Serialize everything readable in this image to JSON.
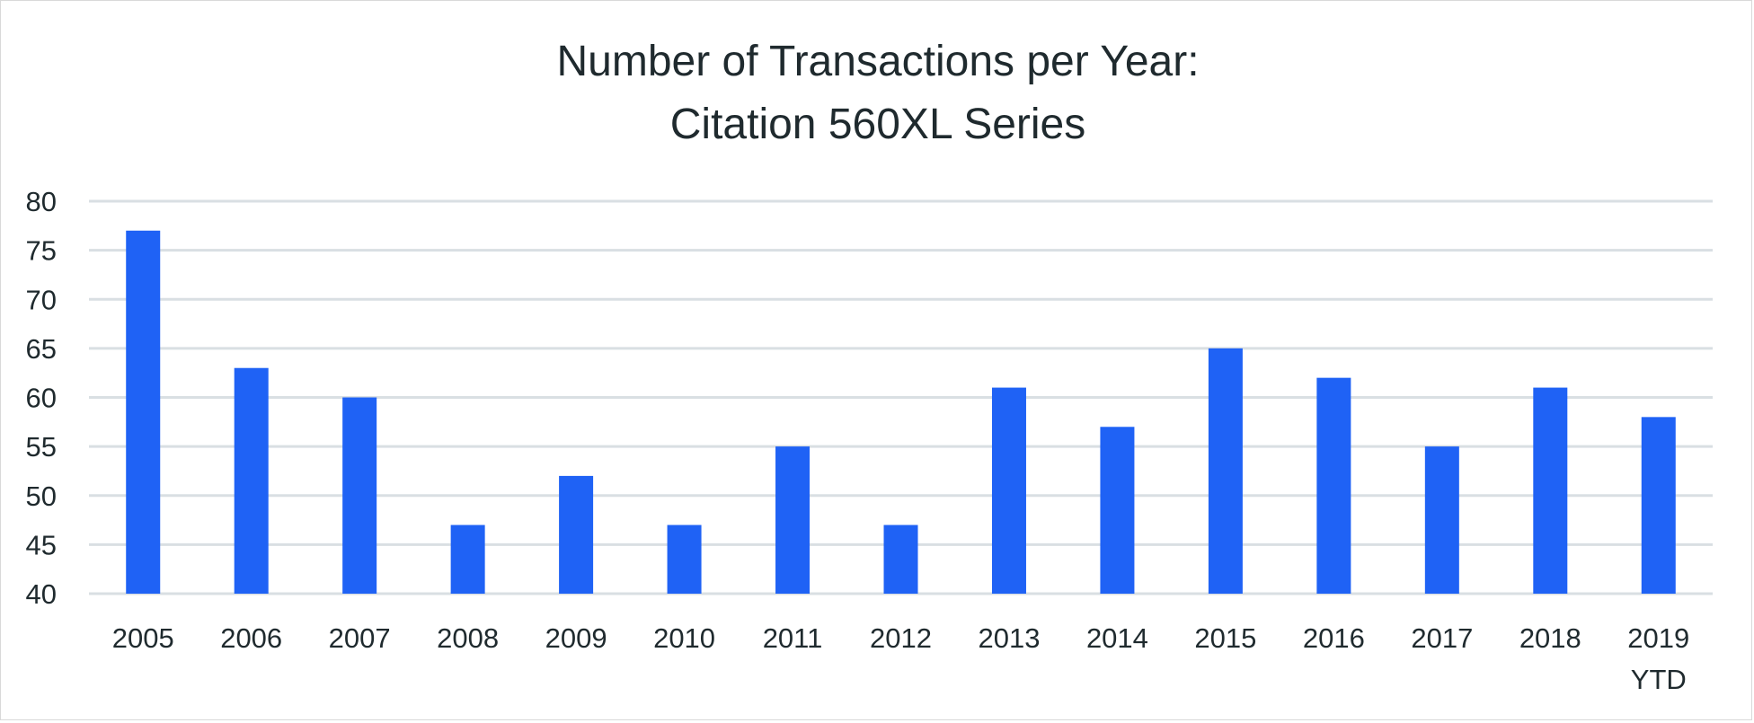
{
  "chart_data": {
    "type": "bar",
    "title": "Number of Transactions per Year:",
    "subtitle": "Citation 560XL Series",
    "categories": [
      "2005",
      "2006",
      "2007",
      "2008",
      "2009",
      "2010",
      "2011",
      "2012",
      "2013",
      "2014",
      "2015",
      "2016",
      "2017",
      "2018",
      "2019 YTD"
    ],
    "values": [
      77,
      63,
      60,
      47,
      52,
      47,
      55,
      47,
      61,
      57,
      65,
      62,
      55,
      61,
      58
    ],
    "ylim": [
      40,
      80
    ],
    "yticks": [
      40,
      45,
      50,
      55,
      60,
      65,
      70,
      75,
      80
    ],
    "grid": true,
    "legend": "none",
    "bar_color": "#1f62f5",
    "grid_color": "#d9dfe3",
    "xlabel": "",
    "ylabel": ""
  }
}
